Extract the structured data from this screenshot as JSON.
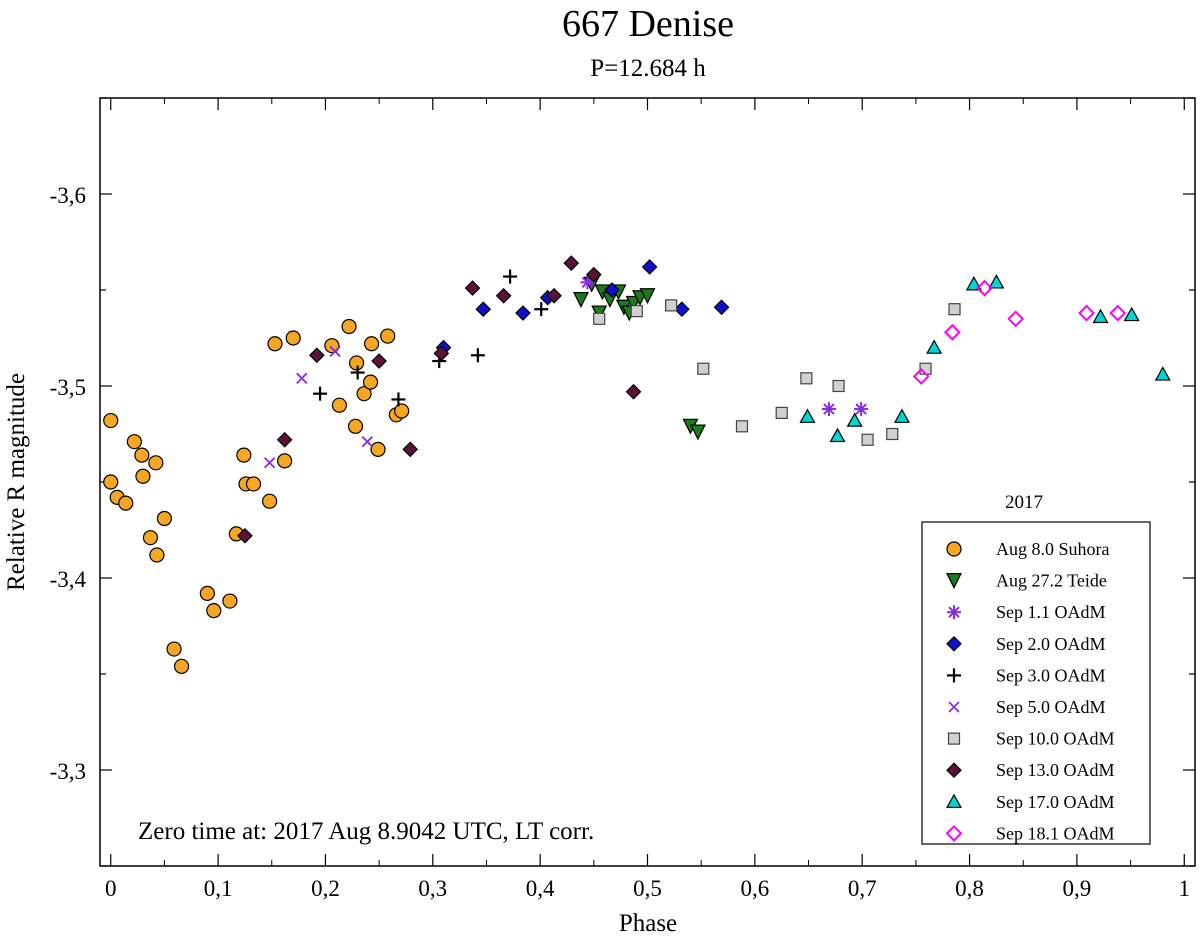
{
  "chart_data": {
    "type": "scatter",
    "title": "667 Denise",
    "subtitle": "P=12.684 h",
    "xlabel": "Phase",
    "ylabel": "Relative R magnitude",
    "xlim": [
      -0.01,
      1.01
    ],
    "ylim": [
      -3.25,
      -3.65
    ],
    "y_inverted": true,
    "x_ticks": [
      0,
      0.1,
      0.2,
      0.3,
      0.4,
      0.5,
      0.6,
      0.7,
      0.8,
      0.9,
      1
    ],
    "x_tick_labels": [
      "0",
      "0,1",
      "0,2",
      "0,3",
      "0,4",
      "0,5",
      "0,6",
      "0,7",
      "0,8",
      "0,9",
      "1"
    ],
    "y_ticks": [
      -3.3,
      -3.4,
      -3.5,
      -3.6
    ],
    "y_tick_labels": [
      "-3,3",
      "-3,4",
      "-3,5",
      "-3,6"
    ],
    "annotation": "Zero time at: 2017 Aug 8.9042 UTC, LT corr.",
    "legend_title": "2017",
    "legend_position": "bottom-right",
    "grid": false,
    "series": [
      {
        "name": "Aug 8.0 Suhora",
        "marker": "circle",
        "color": "#f5a623",
        "filled": true,
        "points": [
          [
            0,
            -3.482
          ],
          [
            0,
            -3.45
          ],
          [
            0.006,
            -3.442
          ],
          [
            0.014,
            -3.439
          ],
          [
            0.022,
            -3.471
          ],
          [
            0.029,
            -3.464
          ],
          [
            0.03,
            -3.453
          ],
          [
            0.037,
            -3.421
          ],
          [
            0.042,
            -3.46
          ],
          [
            0.043,
            -3.412
          ],
          [
            0.05,
            -3.431
          ],
          [
            0.059,
            -3.363
          ],
          [
            0.066,
            -3.354
          ],
          [
            0.09,
            -3.392
          ],
          [
            0.096,
            -3.383
          ],
          [
            0.111,
            -3.388
          ],
          [
            0.117,
            -3.423
          ],
          [
            0.124,
            -3.464
          ],
          [
            0.126,
            -3.449
          ],
          [
            0.133,
            -3.449
          ],
          [
            0.148,
            -3.44
          ],
          [
            0.153,
            -3.522
          ],
          [
            0.162,
            -3.461
          ],
          [
            0.17,
            -3.525
          ],
          [
            0.206,
            -3.521
          ],
          [
            0.213,
            -3.49
          ],
          [
            0.222,
            -3.531
          ],
          [
            0.228,
            -3.479
          ],
          [
            0.229,
            -3.512
          ],
          [
            0.236,
            -3.496
          ],
          [
            0.242,
            -3.502
          ],
          [
            0.243,
            -3.522
          ],
          [
            0.249,
            -3.467
          ],
          [
            0.258,
            -3.526
          ],
          [
            0.266,
            -3.485
          ],
          [
            0.271,
            -3.487
          ]
        ]
      },
      {
        "name": "Aug 27.2 Teide",
        "marker": "triangle-down",
        "color": "#1b7a1b",
        "filled": true,
        "points": [
          [
            0.438,
            -3.545
          ],
          [
            0.448,
            -3.553
          ],
          [
            0.455,
            -3.538
          ],
          [
            0.458,
            -3.549
          ],
          [
            0.465,
            -3.545
          ],
          [
            0.473,
            -3.549
          ],
          [
            0.478,
            -3.541
          ],
          [
            0.483,
            -3.538
          ],
          [
            0.487,
            -3.543
          ],
          [
            0.493,
            -3.546
          ],
          [
            0.5,
            -3.547
          ],
          [
            0.54,
            -3.479
          ],
          [
            0.547,
            -3.476
          ]
        ]
      },
      {
        "name": "Sep 1.1 OAdM",
        "marker": "asterisk",
        "color": "#8a2be2",
        "filled": true,
        "points": [
          [
            0.444,
            -3.554
          ],
          [
            0.669,
            -3.488
          ],
          [
            0.699,
            -3.488
          ]
        ]
      },
      {
        "name": "Sep 2.0 OAdM",
        "marker": "diamond",
        "color": "#1010cc",
        "filled": true,
        "points": [
          [
            0.31,
            -3.52
          ],
          [
            0.347,
            -3.54
          ],
          [
            0.384,
            -3.538
          ],
          [
            0.407,
            -3.546
          ],
          [
            0.467,
            -3.55
          ],
          [
            0.502,
            -3.562
          ],
          [
            0.532,
            -3.54
          ],
          [
            0.569,
            -3.541
          ]
        ]
      },
      {
        "name": "Sep 3.0 OAdM",
        "marker": "plus",
        "color": "#000000",
        "filled": true,
        "points": [
          [
            0.195,
            -3.496
          ],
          [
            0.23,
            -3.507
          ],
          [
            0.268,
            -3.493
          ],
          [
            0.306,
            -3.513
          ],
          [
            0.342,
            -3.516
          ],
          [
            0.372,
            -3.557
          ],
          [
            0.401,
            -3.54
          ]
        ]
      },
      {
        "name": "Sep 5.0 OAdM",
        "marker": "cross",
        "color": "#8a2be2",
        "filled": true,
        "points": [
          [
            0.148,
            -3.46
          ],
          [
            0.178,
            -3.504
          ],
          [
            0.209,
            -3.518
          ],
          [
            0.239,
            -3.471
          ]
        ]
      },
      {
        "name": "Sep 10.0 OAdM",
        "marker": "square",
        "color": "#d0d0d0",
        "filled": true,
        "points": [
          [
            0.455,
            -3.535
          ],
          [
            0.49,
            -3.539
          ],
          [
            0.522,
            -3.542
          ],
          [
            0.552,
            -3.509
          ],
          [
            0.588,
            -3.479
          ],
          [
            0.625,
            -3.486
          ],
          [
            0.648,
            -3.504
          ],
          [
            0.678,
            -3.5
          ],
          [
            0.705,
            -3.472
          ],
          [
            0.728,
            -3.475
          ],
          [
            0.759,
            -3.509
          ],
          [
            0.786,
            -3.54
          ]
        ]
      },
      {
        "name": "Sep 13.0 OAdM",
        "marker": "diamond",
        "color": "#5c1238",
        "filled": true,
        "points": [
          [
            0.125,
            -3.422
          ],
          [
            0.162,
            -3.472
          ],
          [
            0.192,
            -3.516
          ],
          [
            0.25,
            -3.513
          ],
          [
            0.279,
            -3.467
          ],
          [
            0.308,
            -3.517
          ],
          [
            0.337,
            -3.551
          ],
          [
            0.366,
            -3.547
          ],
          [
            0.429,
            -3.564
          ],
          [
            0.45,
            -3.558
          ],
          [
            0.413,
            -3.547
          ],
          [
            0.487,
            -3.497
          ]
        ]
      },
      {
        "name": "Sep 17.0 OAdM",
        "marker": "triangle-up",
        "color": "#00d4d4",
        "filled": true,
        "points": [
          [
            0.649,
            -3.484
          ],
          [
            0.677,
            -3.474
          ],
          [
            0.693,
            -3.482
          ],
          [
            0.737,
            -3.484
          ],
          [
            0.767,
            -3.52
          ],
          [
            0.804,
            -3.553
          ],
          [
            0.825,
            -3.554
          ],
          [
            0.922,
            -3.536
          ],
          [
            0.951,
            -3.537
          ],
          [
            0.98,
            -3.506
          ]
        ]
      },
      {
        "name": "Sep 18.1 OAdM",
        "marker": "diamond-open",
        "color": "#ff00ff",
        "filled": false,
        "points": [
          [
            0.755,
            -3.505
          ],
          [
            0.784,
            -3.528
          ],
          [
            0.814,
            -3.551
          ],
          [
            0.843,
            -3.535
          ],
          [
            0.909,
            -3.538
          ],
          [
            0.938,
            -3.538
          ]
        ]
      }
    ]
  }
}
